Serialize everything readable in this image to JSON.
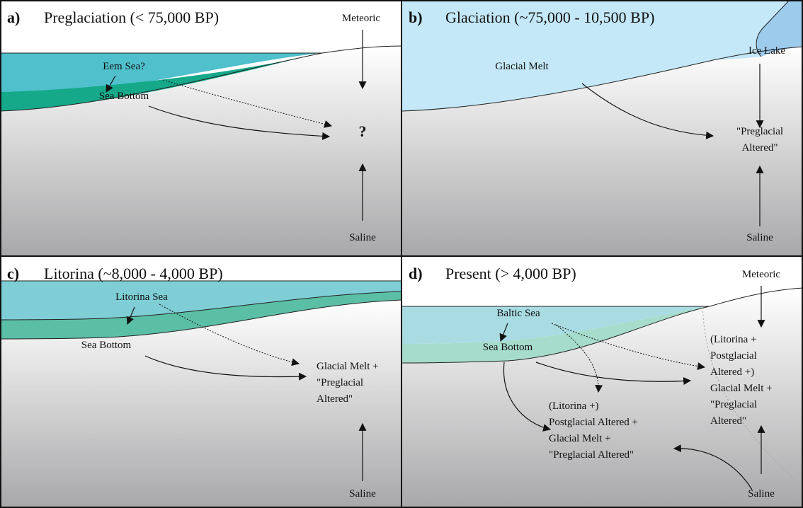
{
  "panels": [
    {
      "letter": "a)",
      "title": "Preglaciation (< 75,000 BP)",
      "labels": [
        [
          "Meteoric"
        ],
        [
          "Eem Sea?"
        ],
        [
          "Sea Bottom"
        ],
        [
          "?"
        ],
        [
          "Saline"
        ]
      ]
    },
    {
      "letter": "b)",
      "title": "Glaciation (~75,000 - 10,500 BP)",
      "labels": [
        [
          "Ice Lake"
        ],
        [
          "Glacial Melt"
        ],
        [
          "\"Preglacial",
          "Altered\""
        ],
        [
          "Saline"
        ]
      ]
    },
    {
      "letter": "c)",
      "title": "Litorina (~8,000 -  4,000 BP)",
      "labels": [
        [
          "Litorina Sea"
        ],
        [
          "Sea Bottom"
        ],
        [
          "Glacial Melt +",
          "\"Preglacial",
          "Altered\""
        ],
        [
          "Saline"
        ]
      ]
    },
    {
      "letter": "d)",
      "title": "Present (> 4,000 BP)",
      "labels": [
        [
          "Meteoric"
        ],
        [
          "Baltic Sea"
        ],
        [
          "Sea Bottom"
        ],
        [
          "(Litorina +",
          "Postglacial",
          "Altered +)",
          "Glacial Melt +",
          "\"Preglacial",
          "Altered\""
        ],
        [
          "(Litorina +)",
          "Postglacial Altered +",
          "Glacial Melt +",
          "\"Preglacial  Altered\""
        ],
        [
          "Saline"
        ]
      ]
    }
  ]
}
